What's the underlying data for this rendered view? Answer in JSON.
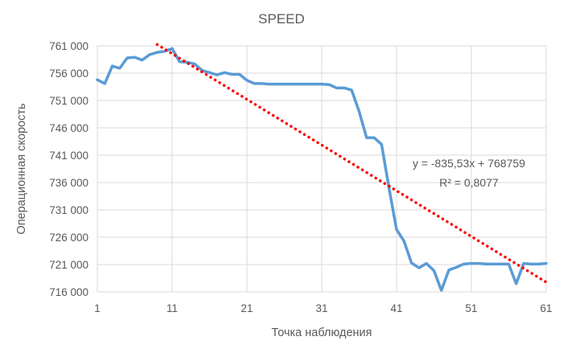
{
  "chart_data": {
    "type": "line",
    "title": "SPEED",
    "xlabel": "Точка наблюдения",
    "ylabel": "Операционная скорость",
    "xlim": [
      1,
      61
    ],
    "ylim": [
      716000,
      761000
    ],
    "x_ticks": [
      1,
      11,
      21,
      31,
      41,
      51,
      61
    ],
    "x_tick_labels": [
      "1",
      "11",
      "21",
      "31",
      "41",
      "51",
      "61"
    ],
    "y_ticks": [
      716000,
      721000,
      726000,
      731000,
      736000,
      741000,
      746000,
      751000,
      756000,
      761000
    ],
    "y_tick_labels": [
      "716 000",
      "721 000",
      "726 000",
      "731 000",
      "736 000",
      "741 000",
      "746 000",
      "751 000",
      "756 000",
      "761 000"
    ],
    "grid": true,
    "legend": "none",
    "series": [
      {
        "color": "#5b9bd5",
        "x": [
          1,
          2,
          3,
          4,
          5,
          6,
          7,
          8,
          9,
          10,
          11,
          12,
          13,
          14,
          15,
          16,
          17,
          18,
          19,
          20,
          21,
          22,
          23,
          24,
          25,
          26,
          27,
          28,
          29,
          30,
          31,
          32,
          33,
          34,
          35,
          36,
          37,
          38,
          39,
          40,
          41,
          42,
          43,
          44,
          45,
          46,
          47,
          48,
          49,
          50,
          51,
          52,
          53,
          54,
          55,
          56,
          57,
          58,
          59,
          60,
          61
        ],
        "values": [
          754800,
          754100,
          757300,
          756900,
          758800,
          758900,
          758400,
          759400,
          759800,
          760000,
          760500,
          758100,
          758000,
          757700,
          756500,
          756100,
          755700,
          756100,
          755800,
          755800,
          754700,
          754100,
          754100,
          754000,
          754000,
          754000,
          754000,
          754000,
          754000,
          754000,
          754000,
          753900,
          753300,
          753300,
          752900,
          749000,
          744200,
          744200,
          743000,
          735000,
          727400,
          725300,
          721300,
          720400,
          721200,
          719900,
          716300,
          720000,
          720500,
          721100,
          721200,
          721200,
          721100,
          721100,
          721100,
          721100,
          717500,
          721200,
          721100,
          721100,
          721200
        ]
      },
      {
        "style": "dotted",
        "color": "#ff0000",
        "x": [
          9,
          61
        ],
        "values": [
          761239,
          717791
        ]
      }
    ],
    "annotations": [
      "y = -835,53x + 768759",
      "R² = 0,8077"
    ]
  }
}
